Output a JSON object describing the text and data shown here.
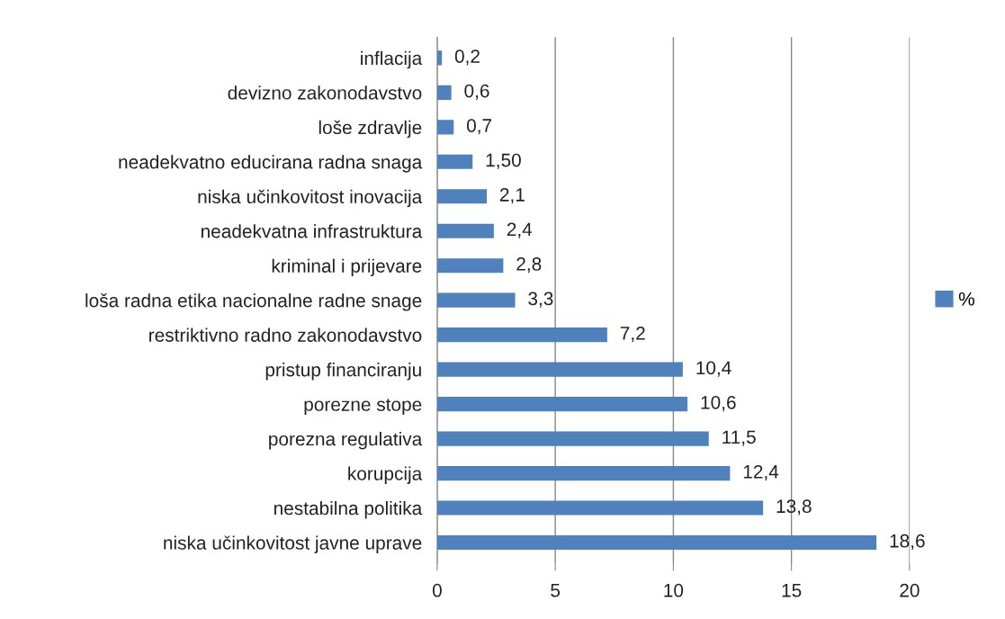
{
  "chart_data": {
    "type": "bar",
    "orientation": "horizontal",
    "categories": [
      "inflacija",
      "devizno zakonodavstvo",
      "loše zdravlje",
      "neadekvatno educirana radna snaga",
      "niska učinkovitost inovacija",
      "neadekvatna infrastruktura",
      "kriminal i prijevare",
      "loša radna etika nacionalne radne snage",
      "restriktivno radno zakonodavstvo",
      "pristup financiranju",
      "porezne stope",
      "porezna regulativa",
      "korupcija",
      "nestabilna politika",
      "niska učinkovitost javne uprave"
    ],
    "series": [
      {
        "name": "%",
        "color": "#4f81bd",
        "values": [
          0.2,
          0.6,
          0.7,
          1.5,
          2.1,
          2.4,
          2.8,
          3.3,
          7.2,
          10.4,
          10.6,
          11.5,
          12.4,
          13.8,
          18.6
        ],
        "value_labels": [
          "0,2",
          "0,6",
          "0,7",
          "1,50",
          "2,1",
          "2,4",
          "2,8",
          "3,3",
          "7,2",
          "10,4",
          "10,6",
          "11,5",
          "12,4",
          "13,8",
          "18,6"
        ]
      }
    ],
    "xlim": [
      0,
      20
    ],
    "xticks": [
      0,
      5,
      10,
      15,
      20
    ],
    "grid": "x",
    "legend": "right"
  }
}
